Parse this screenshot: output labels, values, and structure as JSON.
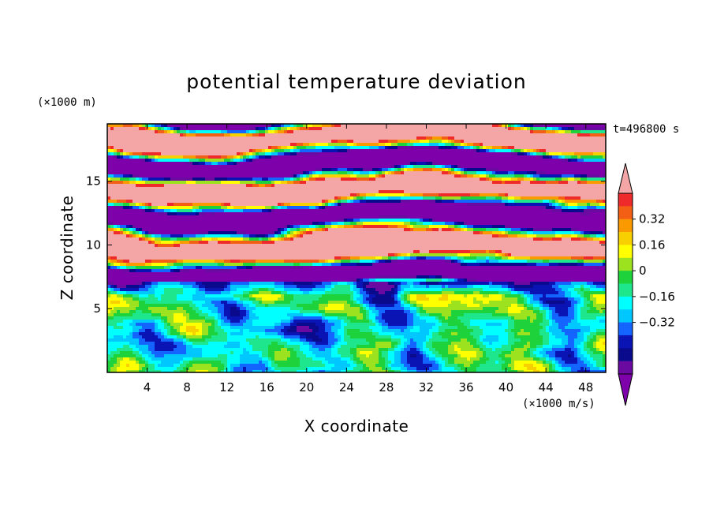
{
  "chart_data": {
    "type": "heatmap",
    "title": "potential temperature deviation",
    "xlabel": "X coordinate",
    "ylabel": "Z coordinate",
    "x_units": "(×1000 m/s)",
    "y_units": "(×1000 m)",
    "time_label": "t=496800 s",
    "xlim": [
      0,
      50
    ],
    "ylim": [
      0,
      19.5
    ],
    "x_ticks": [
      "4",
      "8",
      "12",
      "16",
      "20",
      "24",
      "28",
      "32",
      "36",
      "40",
      "44",
      "48"
    ],
    "y_ticks": [
      "5",
      "10",
      "15"
    ],
    "colorbar": {
      "levels": [
        -0.4,
        -0.32,
        -0.24,
        -0.16,
        -0.08,
        0,
        0.08,
        0.16,
        0.24,
        0.32,
        0.4
      ],
      "tick_labels": [
        "0.32",
        "0.16",
        "0",
        "-0.16",
        "-0.32"
      ],
      "colors_top_to_bottom": [
        "#f4a6a6",
        "#ee2a2a",
        "#f45f16",
        "#fb9a00",
        "#f8d000",
        "#ffff00",
        "#9ce21e",
        "#1ed23c",
        "#1ee68c",
        "#00ffff",
        "#00c8ff",
        "#1464ff",
        "#0a14b4",
        "#0a0a8c",
        "#6a0aa0",
        "#7d00aa"
      ],
      "extend": "both"
    },
    "grid": false,
    "field_description_regions": [
      {
        "z_range": [
          0,
          7
        ],
        "pattern": "mixed convective eddies, mostly cyan/green with warm and cold cells"
      },
      {
        "z_range": [
          7,
          19.5
        ],
        "pattern": "alternating strong positive (pink) and negative (purple) layers"
      }
    ]
  }
}
